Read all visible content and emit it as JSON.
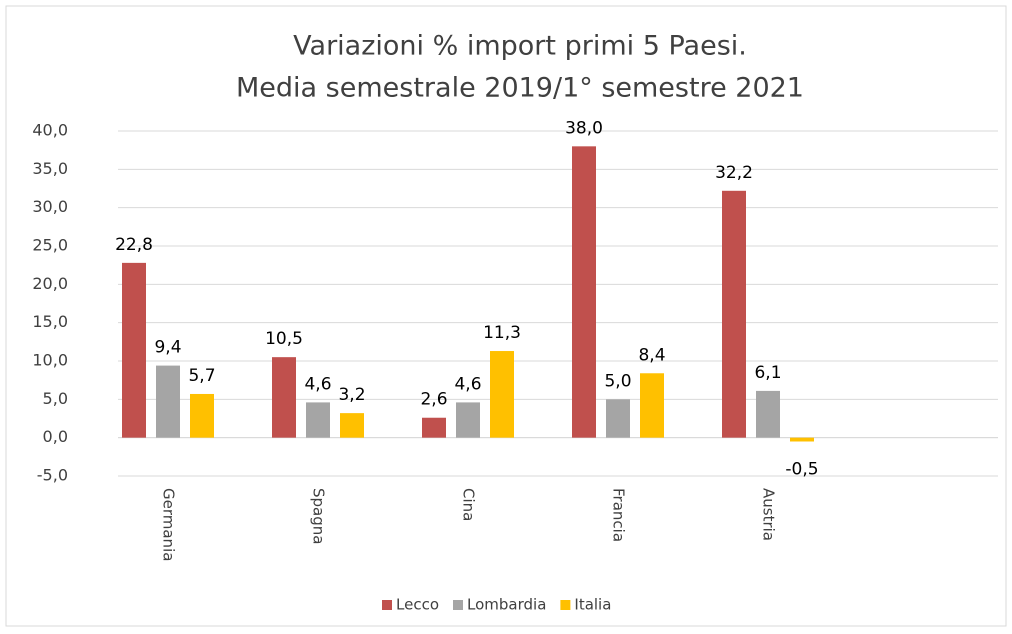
{
  "chart_data": {
    "type": "bar",
    "title": [
      "Variazioni % import primi 5 Paesi.",
      "Media semestrale 2019/1° semestre 2021"
    ],
    "categories": [
      "Germania",
      "Spagna",
      "Cina",
      "Francia",
      "Austria"
    ],
    "series": [
      {
        "name": "Lecco",
        "color": "#c0504d",
        "values": [
          22.8,
          10.5,
          2.6,
          38.0,
          32.2
        ],
        "value_labels": [
          "22,8",
          "10,5",
          "2,6",
          "38,0",
          "32,2"
        ]
      },
      {
        "name": "Lombardia",
        "color": "#a5a5a5",
        "values": [
          9.4,
          4.6,
          4.6,
          5.0,
          6.1
        ],
        "value_labels": [
          "9,4",
          "4,6",
          "4,6",
          "5,0",
          "6,1"
        ]
      },
      {
        "name": "Italia",
        "color": "#ffc000",
        "values": [
          5.7,
          3.2,
          11.3,
          8.4,
          -0.5
        ],
        "value_labels": [
          "5,7",
          "3,2",
          "11,3",
          "8,4",
          "-0,5"
        ]
      }
    ],
    "ylim": [
      -5,
      40
    ],
    "yticks": [
      {
        "value": -5,
        "label": "-5,0"
      },
      {
        "value": 0,
        "label": "0,0"
      },
      {
        "value": 5,
        "label": "5,0"
      },
      {
        "value": 10,
        "label": "10,0"
      },
      {
        "value": 15,
        "label": "15,0"
      },
      {
        "value": 20,
        "label": "20,0"
      },
      {
        "value": 25,
        "label": "25,0"
      },
      {
        "value": 30,
        "label": "30,0"
      },
      {
        "value": 35,
        "label": "35,0"
      },
      {
        "value": 40,
        "label": "40,0"
      }
    ],
    "grid": true
  }
}
